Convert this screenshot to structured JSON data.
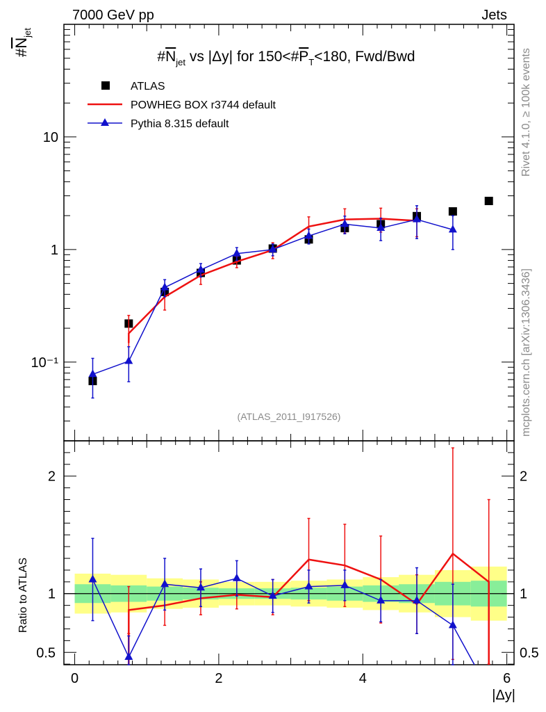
{
  "header": {
    "energy_label": "7000 GeV pp",
    "category_label": "Jets"
  },
  "side": {
    "rivet_label": "Rivet 4.1.0, ≥ 100k events",
    "source_label": "mcplots.cern.ch [arXiv:1306.3436]"
  },
  "chart_data": {
    "type": "scatter",
    "title": "#N̄jet vs |Δy| for 150<#P̄T<180, Fwd/Bwd",
    "title_parts": {
      "pre": "#",
      "n": "N",
      "n_sub": "jet",
      "mid": " vs |Δy| for 150<#",
      "p": "P",
      "p_sub": "T",
      "post": "<180, Fwd/Bwd"
    },
    "ylabel": {
      "hash": "#",
      "main": "N",
      "sub": "jet"
    },
    "xlabel": "|Δy|",
    "ratio_ylabel": "Ratio to ATLAS",
    "watermark": "(ATLAS_2011_I917526)",
    "xlim": [
      -0.15,
      6.1
    ],
    "ylim_log": [
      0.02,
      100
    ],
    "ratio_ylim": [
      0.395,
      2.3
    ],
    "x_ticks": [
      {
        "value": 0,
        "label": "0"
      },
      {
        "value": 2,
        "label": "2"
      },
      {
        "value": 4,
        "label": "4"
      },
      {
        "value": 6,
        "label": "6"
      }
    ],
    "y_ticks": [
      {
        "value": 0.1,
        "label": "10⁻¹"
      },
      {
        "value": 1,
        "label": "1"
      },
      {
        "value": 10,
        "label": "10"
      }
    ],
    "ratio_ticks": [
      {
        "value": 0.5,
        "label": "0.5"
      },
      {
        "value": 1,
        "label": "1"
      },
      {
        "value": 2,
        "label": "2"
      }
    ],
    "legend": {
      "placement": "top-left",
      "entries": [
        {
          "name": "ATLAS",
          "color": "#000000",
          "marker": "square"
        },
        {
          "name": "POWHEG BOX r3744 default",
          "color": "#ee1111",
          "marker": "line"
        },
        {
          "name": "Pythia 8.315 default",
          "color": "#1111cc",
          "marker": "triangle"
        }
      ]
    },
    "bins": [
      0.25,
      0.75,
      1.25,
      1.75,
      2.25,
      2.75,
      3.25,
      3.75,
      4.25,
      4.75,
      5.25,
      5.75
    ],
    "data_series": {
      "name": "ATLAS",
      "values": [
        0.068,
        0.22,
        0.42,
        0.62,
        0.8,
        1.02,
        1.23,
        1.55,
        1.68,
        1.98,
        2.18,
        2.7
      ]
    },
    "band_outer": [
      0.17,
      0.16,
      0.13,
      0.12,
      0.1,
      0.1,
      0.11,
      0.12,
      0.14,
      0.16,
      0.2,
      0.23
    ],
    "band_inner": [
      0.08,
      0.07,
      0.06,
      0.05,
      0.045,
      0.045,
      0.05,
      0.06,
      0.07,
      0.08,
      0.1,
      0.11
    ],
    "series": [
      {
        "name": "POWHEG BOX r3744 default",
        "color": "#ee1111",
        "x": [
          0.75,
          1.25,
          1.75,
          2.25,
          2.75,
          3.25,
          3.75,
          4.25,
          4.75
        ],
        "values": [
          0.18,
          0.38,
          0.59,
          0.78,
          0.99,
          1.6,
          1.85,
          1.88,
          1.8
        ],
        "errors": [
          0.08,
          0.09,
          0.1,
          0.09,
          0.16,
          0.35,
          0.45,
          0.45,
          0.5
        ],
        "ratio": [
          0.86,
          0.9,
          0.96,
          0.99,
          0.97,
          1.29,
          1.24,
          1.12,
          0.91,
          1.34,
          1.1
        ],
        "ratio_x": [
          0.75,
          1.25,
          1.75,
          2.25,
          2.75,
          3.25,
          3.75,
          4.25,
          4.75,
          5.25,
          5.75
        ],
        "ratio_err": [
          0.2,
          0.17,
          0.14,
          0.12,
          0.15,
          0.35,
          0.35,
          0.37,
          0.25,
          0.9,
          0.7
        ],
        "ratio_tail": [
          0.395
        ]
      },
      {
        "name": "Pythia 8.315 default",
        "color": "#1111cc",
        "x": [
          0.25,
          0.75,
          1.25,
          1.75,
          2.25,
          2.75,
          3.25,
          3.75,
          4.25,
          4.75,
          5.25
        ],
        "values": [
          0.078,
          0.102,
          0.46,
          0.66,
          0.92,
          1.0,
          1.32,
          1.68,
          1.55,
          1.85,
          1.5
        ],
        "errors": [
          0.03,
          0.035,
          0.08,
          0.09,
          0.12,
          0.12,
          0.2,
          0.3,
          0.35,
          0.6,
          0.5
        ],
        "ratio": [
          1.12,
          0.46,
          1.08,
          1.05,
          1.13,
          0.98,
          1.06,
          1.07,
          0.94,
          0.94,
          0.73,
          0.395
        ],
        "ratio_x": [
          0.25,
          0.75,
          1.25,
          1.75,
          2.25,
          2.75,
          3.25,
          3.75,
          4.25,
          4.75,
          5.25,
          5.55
        ],
        "ratio_err": [
          0.35,
          0.18,
          0.22,
          0.16,
          0.15,
          0.14,
          0.14,
          0.13,
          0.18,
          0.28,
          0.35,
          0
        ]
      }
    ]
  }
}
